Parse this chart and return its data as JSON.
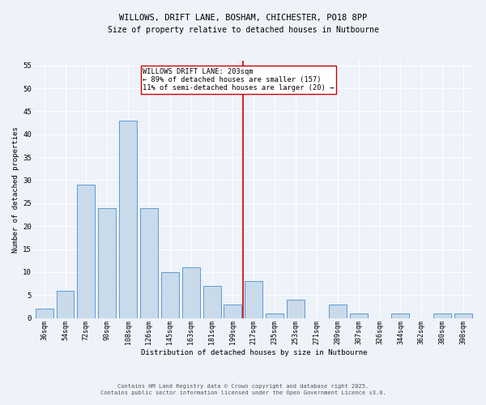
{
  "title_line1": "WILLOWS, DRIFT LANE, BOSHAM, CHICHESTER, PO18 8PP",
  "title_line2": "Size of property relative to detached houses in Nutbourne",
  "xlabel": "Distribution of detached houses by size in Nutbourne",
  "ylabel": "Number of detached properties",
  "bar_labels": [
    "36sqm",
    "54sqm",
    "72sqm",
    "90sqm",
    "108sqm",
    "126sqm",
    "145sqm",
    "163sqm",
    "181sqm",
    "199sqm",
    "217sqm",
    "235sqm",
    "253sqm",
    "271sqm",
    "289sqm",
    "307sqm",
    "326sqm",
    "344sqm",
    "362sqm",
    "380sqm",
    "398sqm"
  ],
  "bar_values": [
    2,
    6,
    29,
    24,
    43,
    24,
    10,
    11,
    7,
    3,
    8,
    1,
    4,
    0,
    3,
    1,
    0,
    1,
    0,
    1,
    1
  ],
  "bar_color": "#c9daea",
  "bar_edgecolor": "#5b9bd5",
  "background_color": "#eef2f9",
  "grid_color": "#ffffff",
  "ref_line_x": 9.5,
  "ref_line_label": "WILLOWS DRIFT LANE: 203sqm",
  "annotation_line2": "← 89% of detached houses are smaller (157)",
  "annotation_line3": "11% of semi-detached houses are larger (20) →",
  "annotation_box_color": "#ffffff",
  "annotation_box_edgecolor": "#cc0000",
  "ref_line_color": "#cc0000",
  "ylim": [
    0,
    56
  ],
  "yticks": [
    0,
    5,
    10,
    15,
    20,
    25,
    30,
    35,
    40,
    45,
    50,
    55
  ],
  "footer_line1": "Contains HM Land Registry data © Crown copyright and database right 2025.",
  "footer_line2": "Contains public sector information licensed under the Open Government Licence v3.0."
}
